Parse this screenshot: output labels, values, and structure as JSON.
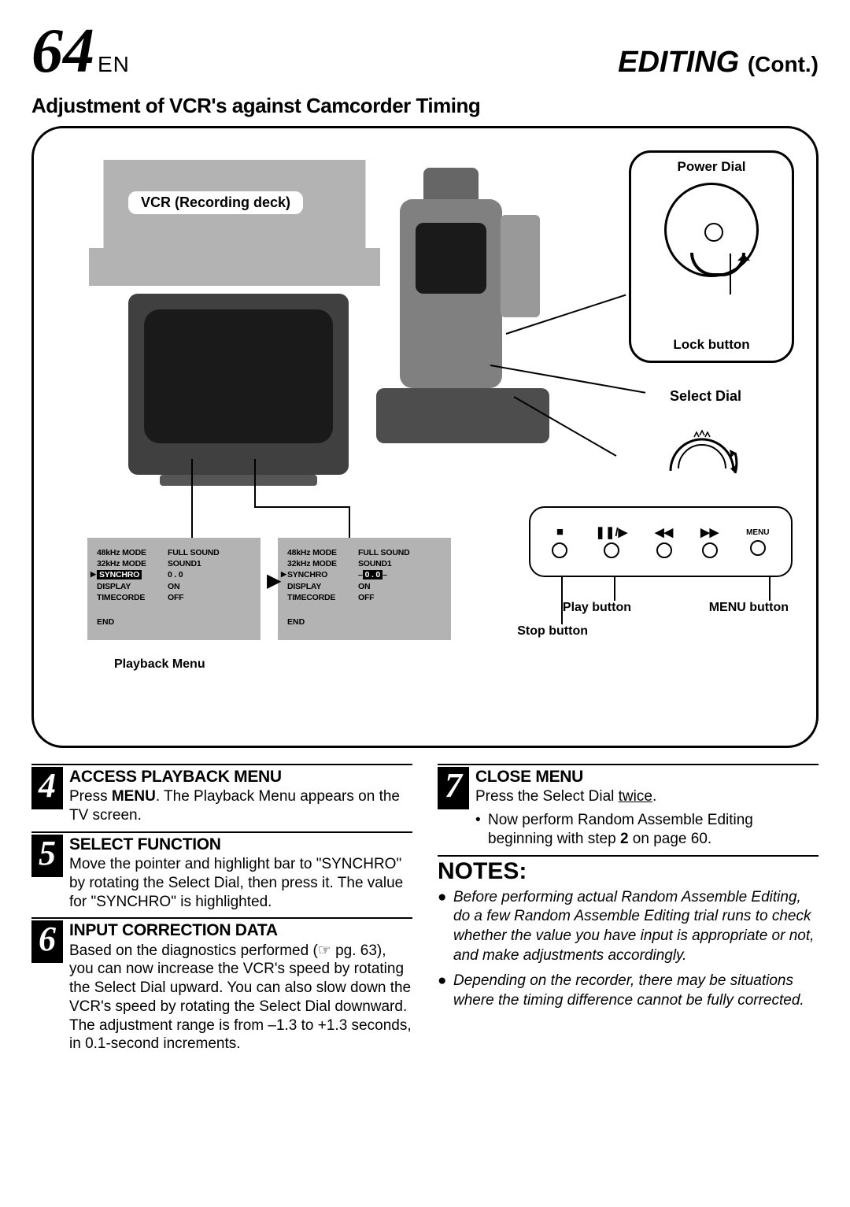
{
  "page": {
    "number": "64",
    "lang": "EN",
    "section": "EDITING",
    "cont": "(Cont.)"
  },
  "subtitle": "Adjustment of VCR's against Camcorder Timing",
  "diagram": {
    "vcr_label": "VCR (Recording deck)",
    "power_dial": "Power Dial",
    "lock_button": "Lock button",
    "select_dial": "Select Dial",
    "playback_menu": "Playback Menu",
    "buttons": {
      "stop": "Stop button",
      "play": "Play button",
      "menu": "MENU button",
      "menu_small": "MENU"
    },
    "menu1": {
      "rows": [
        [
          "48kHz MODE",
          "FULL SOUND"
        ],
        [
          "32kHz MODE",
          "SOUND1"
        ],
        [
          "SYNCHRO",
          "0 . 0"
        ],
        [
          "DISPLAY",
          "ON"
        ],
        [
          "TIMECORDE",
          "OFF"
        ]
      ],
      "end": "END",
      "highlight_row": 2,
      "highlight_col": 0
    },
    "menu2": {
      "rows": [
        [
          "48kHz MODE",
          "FULL SOUND"
        ],
        [
          "32kHz MODE",
          "SOUND1"
        ],
        [
          "SYNCHRO",
          "0 . 0"
        ],
        [
          "DISPLAY",
          "ON"
        ],
        [
          "TIMECORDE",
          "OFF"
        ]
      ],
      "end": "END",
      "highlight_row": 2,
      "highlight_col": 1
    }
  },
  "steps": [
    {
      "n": "4",
      "title": "ACCESS PLAYBACK MENU",
      "body": "Press <b>MENU</b>. The Playback Menu appears on the TV screen."
    },
    {
      "n": "5",
      "title": "SELECT FUNCTION",
      "body": "Move the pointer and highlight bar to \"SYNCHRO\" by rotating the Select Dial, then press it. The value for \"SYNCHRO\" is highlighted."
    },
    {
      "n": "6",
      "title": "INPUT CORRECTION DATA",
      "body": "Based on the diagnostics performed (☞ pg. 63), you can now increase the VCR's speed by rotating the Select Dial upward. You can also slow down the VCR's speed by rotating the Select Dial downward. The adjustment range is from –1.3 to +1.3 seconds, in 0.1-second increments."
    },
    {
      "n": "7",
      "title": "CLOSE MENU",
      "body": "Press the Select Dial <span class='u'>twice</span>.",
      "extra": "Now perform Random Assemble Editing beginning with step <b>2</b> on page 60."
    }
  ],
  "notes_header": "NOTES:",
  "notes": [
    "Before performing actual Random Assemble Editing, do a few Random Assemble Editing trial runs to check whether the value you have input is appropriate or not, and make adjustments accordingly.",
    "Depending on the recorder, there may be situations where the timing difference cannot be fully corrected."
  ]
}
